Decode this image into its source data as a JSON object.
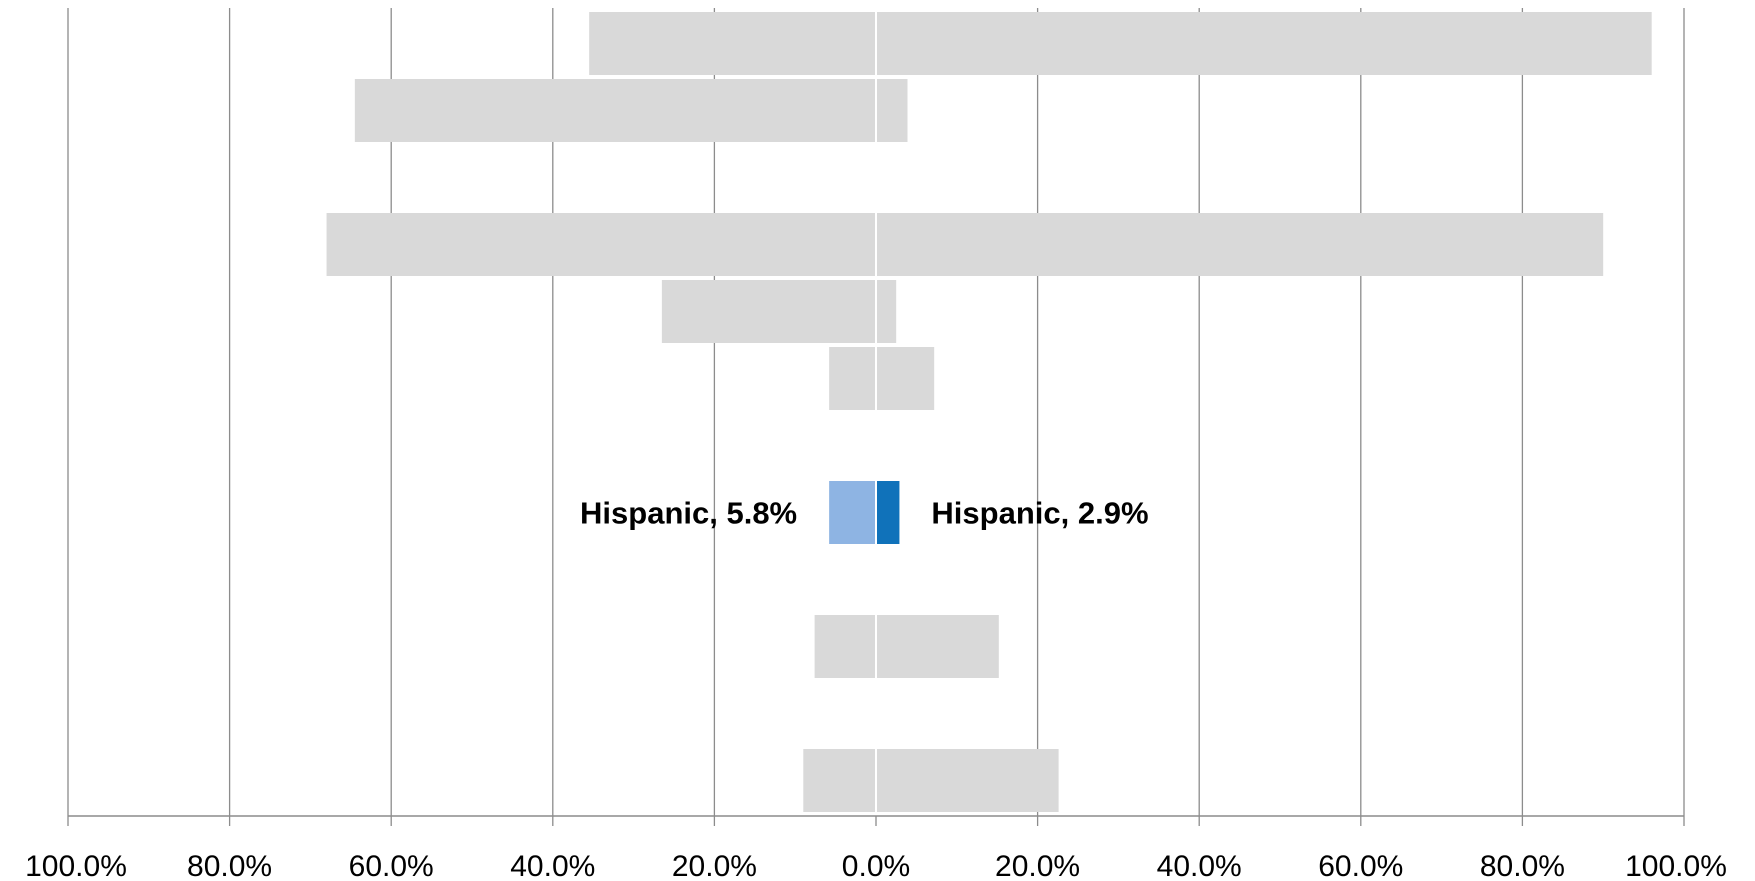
{
  "chart_data": {
    "type": "bar",
    "orientation": "horizontal",
    "layout": "diverging",
    "xlim": [
      -100,
      100
    ],
    "x_tick_values": [
      -100,
      -80,
      -60,
      -40,
      -20,
      0,
      20,
      40,
      60,
      80,
      100
    ],
    "x_tick_labels": [
      "100.0%",
      "80.0%",
      "60.0%",
      "40.0%",
      "20.0%",
      "0.0%",
      "20.0%",
      "40.0%",
      "60.0%",
      "80.0%",
      "100.0%"
    ],
    "grid": true,
    "legend": "none",
    "colors": {
      "muted": "#d9d9d9",
      "highlight_left": "#8eb4e3",
      "highlight_right": "#1072ba",
      "grid": "#8c8c8c"
    },
    "categories": [
      "",
      "",
      "",
      "",
      "",
      "",
      "",
      "",
      "",
      "",
      "",
      ""
    ],
    "series": [
      {
        "side": "left",
        "values": [
          35.5,
          64.5,
          null,
          68.0,
          26.5,
          5.8,
          null,
          5.8,
          null,
          7.6,
          null,
          9.0
        ]
      },
      {
        "side": "right",
        "values": [
          96.0,
          3.9,
          null,
          90.0,
          2.5,
          7.2,
          null,
          2.9,
          null,
          15.2,
          null,
          22.6
        ]
      }
    ],
    "highlight_index": 7,
    "annotations": [
      {
        "index": 7,
        "side": "left",
        "text": "Hispanic, 5.8%"
      },
      {
        "index": 7,
        "side": "right",
        "text": "Hispanic, 2.9%"
      }
    ]
  }
}
